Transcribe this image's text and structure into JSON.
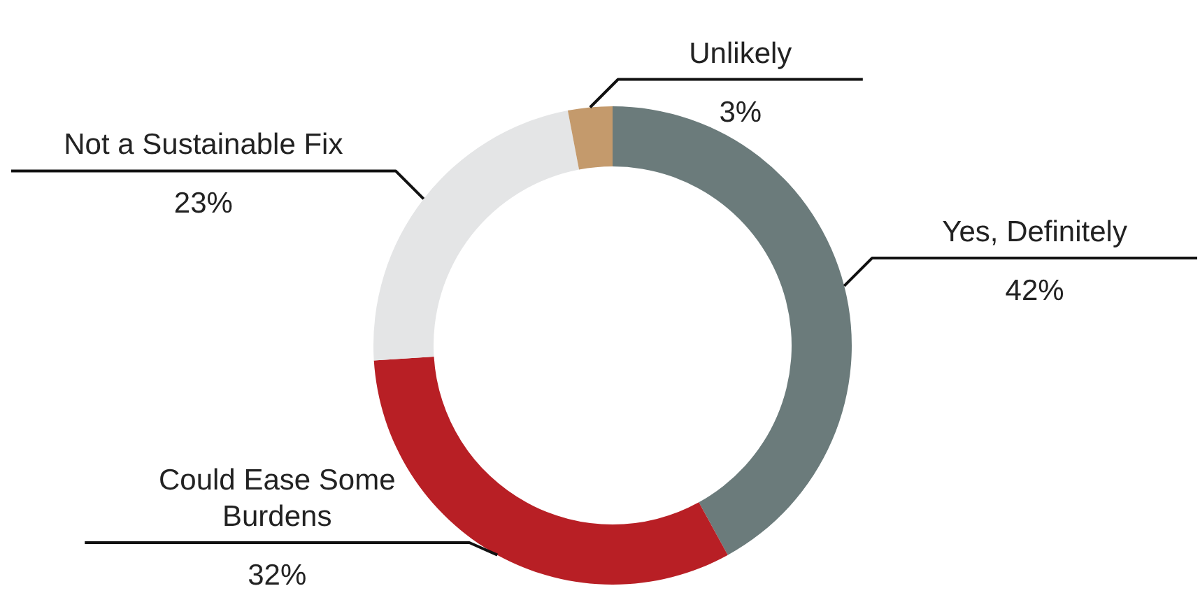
{
  "chart_data": {
    "type": "donut",
    "categories": [
      "Yes, Definitely",
      "Could Ease Some Burdens",
      "Not a Sustainable Fix",
      "Unlikely"
    ],
    "values": [
      42,
      32,
      23,
      3
    ],
    "value_labels": [
      "42%",
      "32%",
      "23%",
      "3%"
    ],
    "colors": [
      "#6b7b7b",
      "#b81f25",
      "#e4e5e6",
      "#c49a6c"
    ],
    "legend": false
  }
}
